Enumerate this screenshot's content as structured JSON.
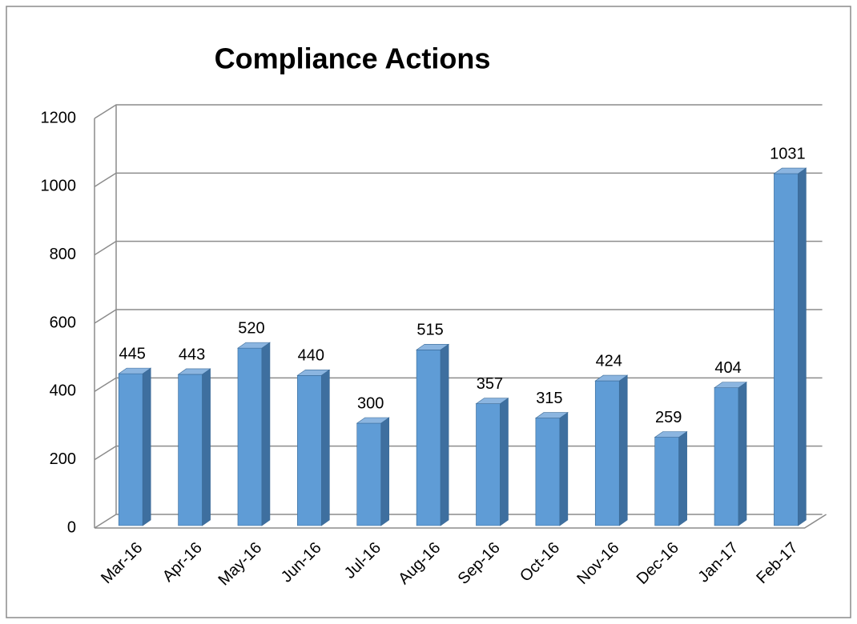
{
  "chart_data": {
    "type": "bar3d",
    "title": "Compliance Actions",
    "categories": [
      "Mar-16",
      "Apr-16",
      "May-16",
      "Jun-16",
      "Jul-16",
      "Aug-16",
      "Sep-16",
      "Oct-16",
      "Nov-16",
      "Dec-16",
      "Jan-17",
      "Feb-17"
    ],
    "values": [
      445,
      443,
      520,
      440,
      300,
      515,
      357,
      315,
      424,
      259,
      404,
      1031
    ],
    "color": "#5f9cd6",
    "ylim": [
      0,
      1200
    ],
    "yticks": [
      0,
      200,
      400,
      600,
      800,
      1000,
      1200
    ],
    "grid": true,
    "data_labels": true
  }
}
